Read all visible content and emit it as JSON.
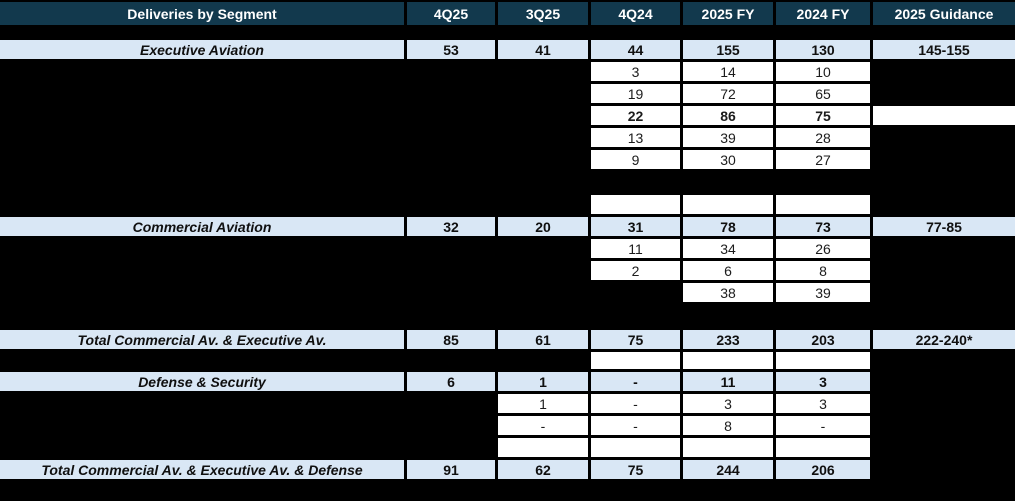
{
  "chart_data": {
    "type": "table",
    "title": "Deliveries by Segment",
    "header": {
      "label": "Deliveries by Segment",
      "cols": [
        "4Q25",
        "3Q25",
        "4Q24",
        "2025 FY",
        "2024 FY",
        "2025 Guidance"
      ]
    },
    "rows": [
      {
        "name": "executive-aviation",
        "kind": "segment",
        "label": "Executive Aviation",
        "c1": "53",
        "c2": "41",
        "c3": "44",
        "c4": "155",
        "c5": "130",
        "c6": "145-155"
      },
      {
        "name": "exec-detail-1",
        "kind": "detail",
        "c3": "3",
        "c4": "14",
        "c5": "10"
      },
      {
        "name": "exec-detail-2",
        "kind": "detail",
        "c3": "19",
        "c4": "72",
        "c5": "65"
      },
      {
        "name": "exec-detail-3",
        "kind": "detail-bold",
        "c3": "22",
        "c4": "86",
        "c5": "75",
        "c6": ""
      },
      {
        "name": "exec-detail-4",
        "kind": "detail",
        "c3": "13",
        "c4": "39",
        "c5": "28"
      },
      {
        "name": "exec-detail-5",
        "kind": "detail",
        "c3": "9",
        "c4": "30",
        "c5": "27"
      },
      {
        "name": "blank-row-1",
        "kind": "blank",
        "c3": "",
        "c4": "",
        "c5": ""
      },
      {
        "name": "commercial-aviation",
        "kind": "segment",
        "label": "Commercial Aviation",
        "c1": "32",
        "c2": "20",
        "c3": "31",
        "c4": "78",
        "c5": "73",
        "c6": "77-85"
      },
      {
        "name": "comm-detail-1",
        "kind": "detail",
        "c3": "11",
        "c4": "34",
        "c5": "26"
      },
      {
        "name": "comm-detail-2",
        "kind": "detail",
        "c3": "2",
        "c4": "6",
        "c5": "8"
      },
      {
        "name": "comm-detail-3",
        "kind": "detail",
        "c4": "38",
        "c5": "39"
      },
      {
        "name": "total-commercial-executive",
        "kind": "total",
        "label": "Total Commercial Av. & Executive Av.",
        "c1": "85",
        "c2": "61",
        "c3": "75",
        "c4": "233",
        "c5": "203",
        "c6": "222-240*"
      },
      {
        "name": "blank-row-2",
        "kind": "blank",
        "c3": "",
        "c4": "",
        "c5": ""
      },
      {
        "name": "defense-security",
        "kind": "segment",
        "label": "Defense & Security",
        "c1": "6",
        "c2": "1",
        "c3": "-",
        "c4": "11",
        "c5": "3"
      },
      {
        "name": "def-detail-1",
        "kind": "detail",
        "c2": "1",
        "c3": "-",
        "c4": "3",
        "c5": "3"
      },
      {
        "name": "def-detail-2",
        "kind": "detail",
        "c2": "-",
        "c3": "-",
        "c4": "8",
        "c5": "-"
      },
      {
        "name": "blank-row-3",
        "kind": "blank",
        "c2": "",
        "c3": "",
        "c4": "",
        "c5": ""
      },
      {
        "name": "total-all",
        "kind": "total",
        "label": "Total Commercial Av. & Executive Av. & Defense",
        "c1": "91",
        "c2": "62",
        "c3": "75",
        "c4": "244",
        "c5": "206"
      }
    ],
    "colors": {
      "header_bg": "#12394d",
      "header_text": "#ffffff",
      "highlight_row_bg": "#d9e7f5",
      "detail_cell_bg": "#ffffff",
      "background": "#000000"
    }
  }
}
